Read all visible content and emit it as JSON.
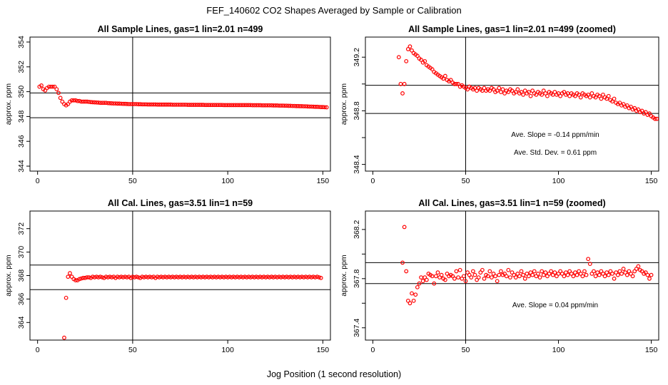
{
  "figure": {
    "title": "FEF_140602  CO2 Shapes Averaged by Sample or Calibration",
    "xlabel": "Jog Position (1 second resolution)"
  },
  "chart_data": [
    {
      "type": "scatter",
      "title": "All Sample Lines, gas=1 lin=2.01 n=499",
      "ylabel": "approx. ppm",
      "xlim": [
        -4,
        154
      ],
      "ylim": [
        343.6,
        354.4
      ],
      "xticks": [
        0,
        50,
        100,
        150
      ],
      "yticks": [
        344,
        346,
        348,
        350,
        352,
        354
      ],
      "hlines": [
        349.9,
        347.9
      ],
      "vline": 50,
      "point_color": "#ff0000",
      "x_start": 1,
      "y": [
        350.4,
        350.5,
        350.2,
        350.1,
        350.3,
        350.4,
        350.4,
        350.4,
        350.4,
        350.2,
        349.9,
        349.5,
        349.2,
        349.0,
        348.9,
        349.0,
        349.2,
        349.3,
        349.3,
        349.3,
        349.25,
        349.25,
        349.2,
        349.2,
        349.2,
        349.2,
        349.18,
        349.16,
        349.15,
        349.14,
        349.13,
        349.12,
        349.1,
        349.1,
        349.1,
        349.1,
        349.08,
        349.07,
        349.06,
        349.05,
        349.05,
        349.04,
        349.04,
        349.03,
        349.02,
        349.02,
        349.01,
        349.0,
        349.0,
        349.0,
        349.0,
        349.0,
        348.99,
        348.99,
        348.98,
        348.98,
        348.98,
        348.97,
        348.97,
        348.97,
        348.97,
        348.97,
        348.96,
        348.96,
        348.96,
        348.96,
        348.96,
        348.96,
        348.96,
        348.96,
        348.95,
        348.95,
        348.95,
        348.95,
        348.95,
        348.95,
        348.95,
        348.95,
        348.94,
        348.94,
        348.94,
        348.94,
        348.94,
        348.94,
        348.94,
        348.94,
        348.94,
        348.93,
        348.93,
        348.93,
        348.93,
        348.93,
        348.93,
        348.93,
        348.93,
        348.93,
        348.93,
        348.92,
        348.92,
        348.92,
        348.92,
        348.92,
        348.92,
        348.92,
        348.92,
        348.92,
        348.92,
        348.92,
        348.92,
        348.92,
        348.92,
        348.92,
        348.91,
        348.91,
        348.91,
        348.91,
        348.91,
        348.9,
        348.9,
        348.9,
        348.9,
        348.9,
        348.9,
        348.89,
        348.89,
        348.89,
        348.88,
        348.88,
        348.88,
        348.87,
        348.87,
        348.86,
        348.86,
        348.85,
        348.85,
        348.84,
        348.84,
        348.83,
        348.83,
        348.82,
        348.82,
        348.81,
        348.8,
        348.8,
        348.79,
        348.78,
        348.78,
        348.77,
        348.76,
        348.76,
        348.75,
        348.74
      ]
    },
    {
      "type": "scatter",
      "title": "All Sample Lines, gas=1 lin=2.01 n=499 (zoomed)",
      "ylabel": "approx. ppm",
      "xlim": [
        -4,
        154
      ],
      "ylim": [
        348.35,
        349.35
      ],
      "xticks": [
        0,
        50,
        100,
        150
      ],
      "yticks": [
        348.4,
        348.6,
        348.8,
        349.0,
        349.2
      ],
      "ytick_labels": [
        "348.4",
        "",
        "348.8",
        "",
        "349.2"
      ],
      "hlines": [
        348.99,
        348.78
      ],
      "vline": 50,
      "point_color": "#ff0000",
      "x_start": 14,
      "y": [
        349.2,
        349.0,
        348.93,
        349.0,
        349.17,
        349.26,
        349.28,
        349.25,
        349.23,
        349.22,
        349.21,
        349.19,
        349.18,
        349.16,
        349.17,
        349.14,
        349.13,
        349.12,
        349.11,
        349.09,
        349.08,
        349.07,
        349.06,
        349.05,
        349.04,
        349.06,
        349.03,
        349.02,
        349.03,
        349.01,
        349.0,
        349.0,
        349.0,
        348.98,
        348.99,
        348.98,
        348.97,
        348.96,
        348.98,
        348.97,
        348.96,
        348.97,
        348.95,
        348.97,
        348.96,
        348.95,
        348.97,
        348.95,
        348.96,
        348.95,
        348.97,
        348.96,
        348.94,
        348.95,
        348.97,
        348.94,
        348.96,
        348.93,
        348.95,
        348.94,
        348.96,
        348.95,
        348.93,
        348.94,
        348.96,
        348.93,
        348.94,
        348.92,
        348.95,
        348.93,
        348.94,
        348.91,
        348.95,
        348.93,
        348.92,
        348.94,
        348.93,
        348.92,
        348.95,
        348.93,
        348.91,
        348.94,
        348.93,
        348.92,
        348.94,
        348.92,
        348.93,
        348.91,
        348.93,
        348.94,
        348.92,
        348.93,
        348.91,
        348.93,
        348.92,
        348.91,
        348.93,
        348.92,
        348.9,
        348.93,
        348.92,
        348.91,
        348.92,
        348.9,
        348.93,
        348.91,
        348.9,
        348.92,
        348.91,
        348.89,
        348.92,
        348.9,
        348.89,
        348.91,
        348.88,
        348.87,
        348.89,
        348.86,
        348.85,
        348.86,
        348.84,
        348.85,
        348.83,
        348.84,
        348.82,
        348.83,
        348.81,
        348.82,
        348.8,
        348.81,
        348.79,
        348.8,
        348.78,
        348.79,
        348.77,
        348.78,
        348.76,
        348.75,
        348.74,
        348.74
      ],
      "annotations": [
        "Ave. Slope =  -0.14  ppm/min",
        "Ave. Std. Dev. =  0.61  ppm"
      ]
    },
    {
      "type": "scatter",
      "title": "All Cal. Lines, gas=3.51 lin=1 n=59",
      "ylabel": "approx. ppm",
      "xlim": [
        -4,
        154
      ],
      "ylim": [
        362.5,
        373.5
      ],
      "xticks": [
        0,
        50,
        100,
        150
      ],
      "yticks": [
        364,
        366,
        368,
        370,
        372
      ],
      "hlines": [
        368.9,
        366.8
      ],
      "vline": 50,
      "point_color": "#ff0000",
      "x_start": 14,
      "y": [
        362.7,
        366.1,
        367.9,
        368.2,
        367.9,
        367.7,
        367.6,
        367.6,
        367.7,
        367.75,
        367.8,
        367.8,
        367.85,
        367.85,
        367.8,
        367.9,
        367.85,
        367.9,
        367.85,
        367.9,
        367.85,
        367.8,
        367.9,
        367.85,
        367.9,
        367.85,
        367.9,
        367.8,
        367.9,
        367.85,
        367.9,
        367.85,
        367.9,
        367.85,
        367.9,
        367.8,
        367.9,
        367.85,
        367.9,
        367.85,
        367.8,
        367.9,
        367.85,
        367.9,
        367.85,
        367.9,
        367.85,
        367.9,
        367.8,
        367.9,
        367.85,
        367.9,
        367.85,
        367.9,
        367.85,
        367.9,
        367.85,
        367.9,
        367.85,
        367.9,
        367.85,
        367.9,
        367.85,
        367.9,
        367.85,
        367.9,
        367.85,
        367.9,
        367.85,
        367.9,
        367.85,
        367.9,
        367.85,
        367.9,
        367.85,
        367.9,
        367.85,
        367.9,
        367.85,
        367.9,
        367.85,
        367.9,
        367.85,
        367.9,
        367.85,
        367.9,
        367.85,
        367.9,
        367.85,
        367.9,
        367.85,
        367.9,
        367.85,
        367.9,
        367.85,
        367.9,
        367.85,
        367.9,
        367.85,
        367.9,
        367.85,
        367.9,
        367.85,
        367.9,
        367.85,
        367.9,
        367.85,
        367.9,
        367.85,
        367.9,
        367.85,
        367.9,
        367.85,
        367.9,
        367.85,
        367.9,
        367.85,
        367.9,
        367.85,
        367.9,
        367.85,
        367.9,
        367.85,
        367.9,
        367.85,
        367.9,
        367.85,
        367.9,
        367.85,
        367.9,
        367.85,
        367.9,
        367.85,
        367.9,
        367.85,
        367.8
      ]
    },
    {
      "type": "scatter",
      "title": "All Cal. Lines, gas=3.51 lin=1 n=59 (zoomed)",
      "ylabel": "approx. ppm",
      "xlim": [
        -4,
        154
      ],
      "ylim": [
        367.3,
        368.35
      ],
      "xticks": [
        0,
        50,
        100,
        150
      ],
      "yticks": [
        367.4,
        367.6,
        367.8,
        368.0,
        368.2
      ],
      "ytick_labels": [
        "367.4",
        "",
        "367.8",
        "",
        "368.2"
      ],
      "hlines": [
        367.93,
        367.76
      ],
      "vline": 50,
      "point_color": "#ff0000",
      "x_start": 16,
      "y": [
        367.93,
        368.22,
        367.86,
        367.62,
        367.6,
        367.68,
        367.62,
        367.67,
        367.73,
        367.76,
        367.81,
        367.78,
        367.81,
        367.79,
        367.84,
        367.83,
        367.82,
        367.76,
        367.82,
        367.85,
        367.81,
        367.83,
        367.8,
        367.79,
        367.84,
        367.82,
        367.83,
        367.82,
        367.8,
        367.86,
        367.81,
        367.87,
        367.8,
        367.82,
        367.78,
        367.85,
        367.83,
        367.81,
        367.86,
        367.83,
        367.79,
        367.81,
        367.85,
        367.87,
        367.8,
        367.83,
        367.82,
        367.86,
        367.81,
        367.84,
        367.82,
        367.78,
        367.83,
        367.86,
        367.83,
        367.84,
        367.82,
        367.87,
        367.81,
        367.85,
        367.83,
        367.81,
        367.84,
        367.82,
        367.86,
        367.83,
        367.8,
        367.84,
        367.82,
        367.85,
        367.83,
        367.86,
        367.82,
        367.84,
        367.81,
        367.86,
        367.83,
        367.85,
        367.82,
        367.84,
        367.86,
        367.83,
        367.85,
        367.82,
        367.84,
        367.86,
        367.84,
        367.82,
        367.85,
        367.83,
        367.86,
        367.84,
        367.82,
        367.85,
        367.83,
        367.86,
        367.84,
        367.82,
        367.86,
        367.83,
        367.96,
        367.92,
        367.84,
        367.86,
        367.82,
        367.85,
        367.83,
        367.86,
        367.84,
        367.82,
        367.85,
        367.83,
        367.86,
        367.84,
        367.8,
        367.85,
        367.83,
        367.86,
        367.84,
        367.88,
        367.85,
        367.83,
        367.86,
        367.84,
        367.82,
        367.86,
        367.88,
        367.9,
        367.87,
        367.86,
        367.84,
        367.85,
        367.83,
        367.8,
        367.83
      ],
      "annotations": [
        "Ave. Slope =  0.04  ppm/min"
      ]
    }
  ]
}
